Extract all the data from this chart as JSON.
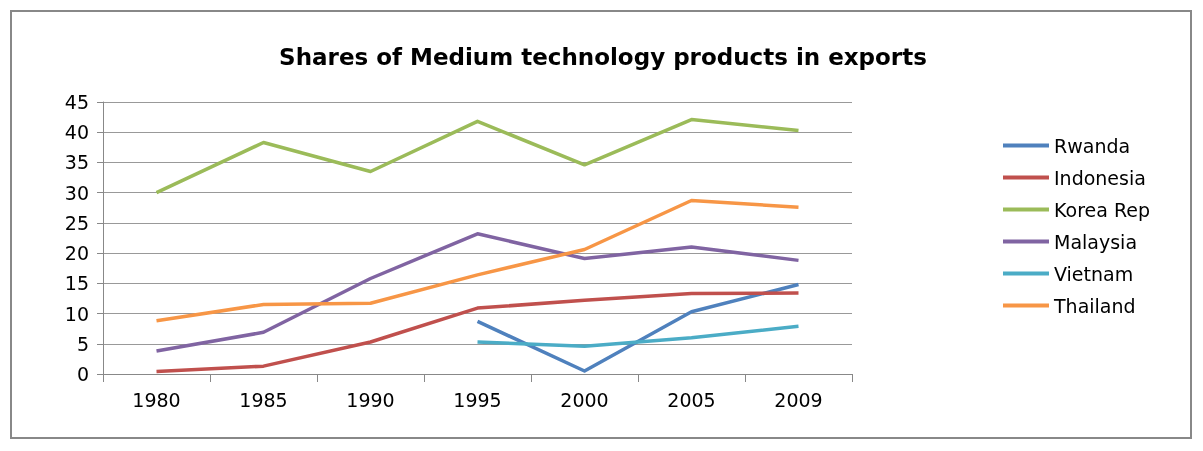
{
  "chart_data": {
    "type": "line",
    "title": "Shares of Medium technology products in exports",
    "categories": [
      "1980",
      "1985",
      "1990",
      "1995",
      "2000",
      "2005",
      "2009"
    ],
    "ylim": [
      0,
      45
    ],
    "yticks": [
      0,
      5,
      10,
      15,
      20,
      25,
      30,
      35,
      40,
      45
    ],
    "grid": "y",
    "legend": "right",
    "marker": "none",
    "line_style": "solid",
    "series": [
      {
        "name": "Rwanda",
        "color": "#4f81bd",
        "values": [
          null,
          null,
          null,
          8.7,
          0.5,
          10.3,
          14.8
        ]
      },
      {
        "name": "Indonesia",
        "color": "#c0504d",
        "values": [
          0.4,
          1.3,
          5.3,
          10.9,
          12.2,
          13.3,
          13.4
        ]
      },
      {
        "name": "Korea Rep",
        "color": "#9bbb59",
        "values": [
          30,
          38.3,
          33.5,
          41.8,
          34.6,
          42.1,
          40.3
        ]
      },
      {
        "name": "Malaysia",
        "color": "#8064a2",
        "values": [
          3.8,
          6.9,
          15.8,
          23.2,
          19.1,
          21,
          18.8
        ]
      },
      {
        "name": "Vietnam",
        "color": "#4bacc6",
        "values": [
          null,
          null,
          null,
          5.3,
          4.6,
          6,
          7.9
        ]
      },
      {
        "name": "Thailand",
        "color": "#f79646",
        "values": [
          8.8,
          11.5,
          11.7,
          16.4,
          20.6,
          28.7,
          27.6
        ]
      }
    ]
  }
}
